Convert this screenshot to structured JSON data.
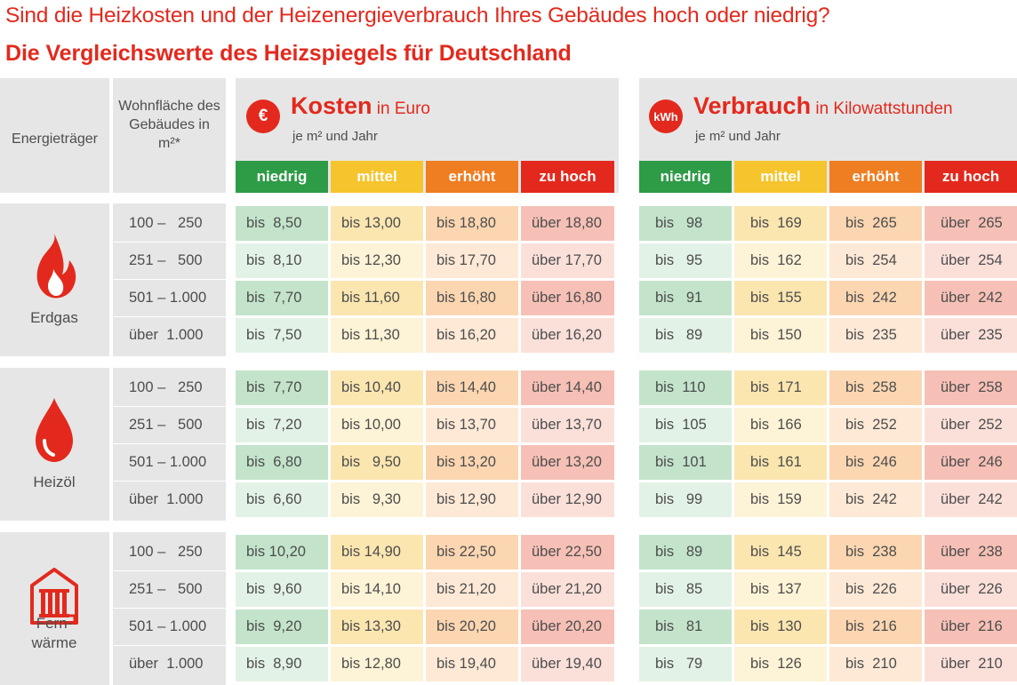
{
  "title_line1": "Sind die Heizkosten und der Heizenergieverbrauch Ihres Gebäudes hoch oder niedrig?",
  "title_line2": "Die Vergleichswerte des Heizspiegels für Deutschland",
  "header": {
    "carrier_label": "Energieträger",
    "area_label": "Wohnfläche des Gebäudes in m²*"
  },
  "costs": {
    "icon": "€",
    "title": "Kosten",
    "unit": "in Euro",
    "subtitle": "je m² und Jahr"
  },
  "consumption": {
    "icon": "kWh",
    "title": "Verbrauch",
    "unit": "in Kilowattstunden",
    "subtitle": "je m² und Jahr"
  },
  "levels": [
    "niedrig",
    "mittel",
    "erhöht",
    "zu hoch"
  ],
  "colors": {
    "accent": "#e3291d",
    "level_header": [
      "#2e9b47",
      "#f6c42c",
      "#ef7d22",
      "#e3291d"
    ],
    "level_cell_dark": [
      "#c3e4cb",
      "#fbe6b0",
      "#fbd6b1",
      "#f6c0b6"
    ],
    "level_cell_light": [
      "#e3f2e6",
      "#fdf3d6",
      "#fde9d6",
      "#fbe0da"
    ]
  },
  "area_ranges": [
    "100 –   250",
    "251 –   500",
    "501 – 1.000",
    "über  1.000"
  ],
  "carriers": [
    {
      "name": "Erdgas",
      "icon": "flame-icon",
      "costs": [
        [
          "bis  8,50",
          "bis 13,00",
          "bis 18,80",
          "über 18,80"
        ],
        [
          "bis  8,10",
          "bis 12,30",
          "bis 17,70",
          "über 17,70"
        ],
        [
          "bis  7,70",
          "bis 11,60",
          "bis 16,80",
          "über 16,80"
        ],
        [
          "bis  7,50",
          "bis 11,30",
          "bis 16,20",
          "über 16,20"
        ]
      ],
      "consumption": [
        [
          "bis   98",
          "bis  169",
          "bis  265",
          "über  265"
        ],
        [
          "bis   95",
          "bis  162",
          "bis  254",
          "über  254"
        ],
        [
          "bis   91",
          "bis  155",
          "bis  242",
          "über  242"
        ],
        [
          "bis   89",
          "bis  150",
          "bis  235",
          "über  235"
        ]
      ]
    },
    {
      "name": "Heizöl",
      "icon": "oil-drop-icon",
      "costs": [
        [
          "bis  7,70",
          "bis 10,40",
          "bis 14,40",
          "über 14,40"
        ],
        [
          "bis  7,20",
          "bis 10,00",
          "bis 13,70",
          "über 13,70"
        ],
        [
          "bis  6,80",
          "bis   9,50",
          "bis 13,20",
          "über 13,20"
        ],
        [
          "bis  6,60",
          "bis   9,30",
          "bis 12,90",
          "über 12,90"
        ]
      ],
      "consumption": [
        [
          "bis  110",
          "bis  171",
          "bis  258",
          "über  258"
        ],
        [
          "bis  105",
          "bis  166",
          "bis  252",
          "über  252"
        ],
        [
          "bis  101",
          "bis  161",
          "bis  246",
          "über  246"
        ],
        [
          "bis   99",
          "bis  159",
          "bis  242",
          "über  242"
        ]
      ]
    },
    {
      "name": "Fern-\nwärme",
      "icon": "district-heating-icon",
      "costs": [
        [
          "bis 10,20",
          "bis 14,90",
          "bis 22,50",
          "über 22,50"
        ],
        [
          "bis  9,60",
          "bis 14,10",
          "bis 21,20",
          "über 21,20"
        ],
        [
          "bis  9,20",
          "bis 13,30",
          "bis 20,20",
          "über 20,20"
        ],
        [
          "bis  8,90",
          "bis 12,80",
          "bis 19,40",
          "über 19,40"
        ]
      ],
      "consumption": [
        [
          "bis   89",
          "bis  145",
          "bis  238",
          "über  238"
        ],
        [
          "bis   85",
          "bis  137",
          "bis  226",
          "über  226"
        ],
        [
          "bis   81",
          "bis  130",
          "bis  216",
          "über  216"
        ],
        [
          "bis   79",
          "bis  126",
          "bis  210",
          "über  210"
        ]
      ]
    }
  ]
}
